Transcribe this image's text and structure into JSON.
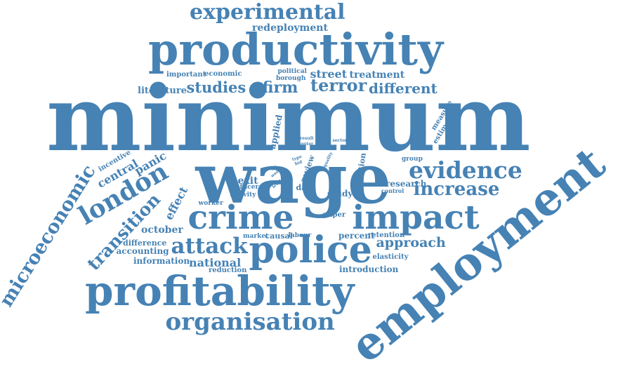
{
  "color": "#4682B4",
  "words": [
    {
      "id": "minimum",
      "text": "minimum"
    },
    {
      "id": "wage",
      "text": "wage"
    },
    {
      "id": "employment",
      "text": "employment"
    },
    {
      "id": "productivity",
      "text": "productivity"
    },
    {
      "id": "profitability",
      "text": "profitability"
    },
    {
      "id": "police",
      "text": "police"
    },
    {
      "id": "crime",
      "text": "crime"
    },
    {
      "id": "impact",
      "text": "impact"
    },
    {
      "id": "experimental",
      "text": "experimental"
    },
    {
      "id": "organisation",
      "text": "organisation"
    },
    {
      "id": "evidence",
      "text": "evidence"
    },
    {
      "id": "microeconomic",
      "text": "microeconomic"
    },
    {
      "id": "london",
      "text": "london"
    },
    {
      "id": "attack",
      "text": "attack"
    },
    {
      "id": "increase",
      "text": "increase"
    },
    {
      "id": "transition",
      "text": "transition"
    },
    {
      "id": "terror",
      "text": "terror"
    },
    {
      "id": "firm",
      "text": "firm"
    },
    {
      "id": "studies",
      "text": "studies"
    },
    {
      "id": "different",
      "text": "different"
    },
    {
      "id": "approach",
      "text": "approach"
    },
    {
      "id": "street",
      "text": "street"
    },
    {
      "id": "redeployment",
      "text": "redeployment"
    },
    {
      "id": "treatment",
      "text": "treatment"
    },
    {
      "id": "literature",
      "text": "literature"
    },
    {
      "id": "national",
      "text": "national"
    },
    {
      "id": "central",
      "text": "central"
    },
    {
      "id": "panic",
      "text": "panic"
    },
    {
      "id": "effect",
      "text": "effect"
    },
    {
      "id": "october",
      "text": "october"
    },
    {
      "id": "research",
      "text": "research"
    },
    {
      "id": "introduction",
      "text": "introduction"
    },
    {
      "id": "accounting",
      "text": "accounting"
    },
    {
      "id": "information",
      "text": "information"
    },
    {
      "id": "difference",
      "text": "difference"
    },
    {
      "id": "incentive",
      "text": "incentive"
    },
    {
      "id": "applied",
      "text": "applied"
    },
    {
      "id": "innovation",
      "text": "innovation"
    },
    {
      "id": "review",
      "text": "review"
    },
    {
      "id": "exit",
      "text": "exit"
    },
    {
      "id": "data",
      "text": "data"
    },
    {
      "id": "study",
      "text": "study"
    },
    {
      "id": "paper",
      "text": "paper"
    },
    {
      "id": "percent",
      "text": "percent"
    },
    {
      "id": "retention",
      "text": "retention"
    },
    {
      "id": "elasticity",
      "text": "elasticity"
    },
    {
      "id": "reduction",
      "text": "reduction"
    },
    {
      "id": "causal",
      "text": "causal"
    },
    {
      "id": "labour",
      "text": "labour"
    },
    {
      "id": "market",
      "text": "market"
    },
    {
      "id": "worker",
      "text": "worker"
    },
    {
      "id": "officer",
      "text": "officer"
    },
    {
      "id": "activity",
      "text": "activity"
    },
    {
      "id": "important",
      "text": "important"
    },
    {
      "id": "economic",
      "text": "economic"
    },
    {
      "id": "political",
      "text": "political"
    },
    {
      "id": "borough",
      "text": "borough"
    },
    {
      "id": "measure",
      "text": "measure"
    },
    {
      "id": "estimate",
      "text": "estimate"
    },
    {
      "id": "group",
      "text": "group"
    },
    {
      "id": "control",
      "text": "control"
    },
    {
      "id": "result",
      "text": "result"
    },
    {
      "id": "outer",
      "text": "outer"
    },
    {
      "id": "sector",
      "text": "sector"
    },
    {
      "id": "quality",
      "text": "quality"
    },
    {
      "id": "type",
      "text": "type"
    },
    {
      "id": "bid",
      "text": "bid"
    },
    {
      "id": "six",
      "text": "six"
    },
    {
      "id": "week",
      "text": "week"
    },
    {
      "id": "level",
      "text": "level"
    }
  ]
}
